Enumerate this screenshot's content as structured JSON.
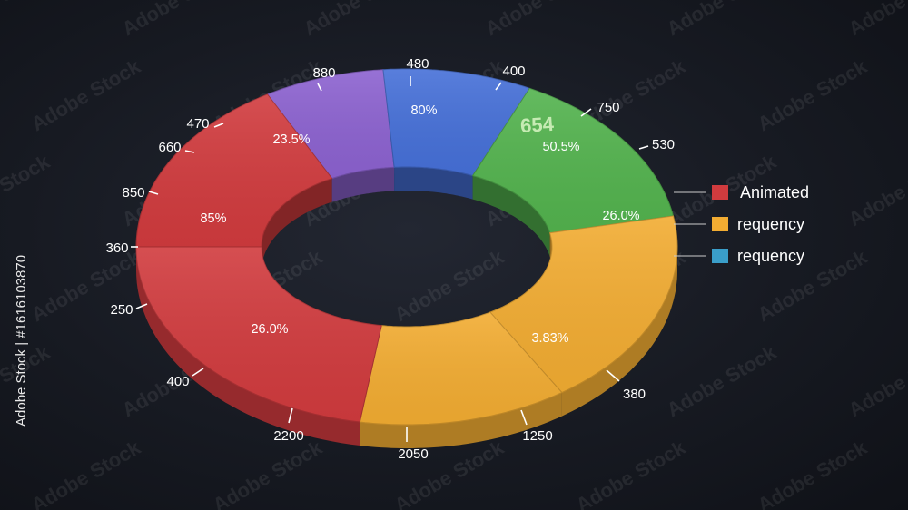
{
  "chart_data": {
    "type": "pie",
    "donut": true,
    "segments": [
      {
        "label": "23.5%",
        "color": "#8c62d0"
      },
      {
        "label": "80%",
        "color": "#4670d8"
      },
      {
        "label": "50.5%",
        "color": "#53b34e"
      },
      {
        "label": "26.0%",
        "color": "#f2ac32"
      },
      {
        "label": "3.83%",
        "color": "#f2ac32"
      },
      {
        "label": "26.0%",
        "color": "#d13b3e"
      },
      {
        "label": "85%",
        "color": "#d13b3e"
      }
    ],
    "outer_values": [
      "480",
      "400",
      "750",
      "530",
      "380",
      "1250",
      "2050",
      "2200",
      "400",
      "250",
      "360",
      "850",
      "660",
      "470",
      "880"
    ],
    "annotation": "654",
    "legend": [
      {
        "label": "Animated",
        "color": "#d13b3e"
      },
      {
        "label": "requency",
        "color": "#f2ac32"
      },
      {
        "label": "requency",
        "color": "#3a9ec9"
      }
    ],
    "legend_position": "right"
  },
  "watermark": "Adobe Stock",
  "side_text": "Adobe Stock | #1616103870"
}
